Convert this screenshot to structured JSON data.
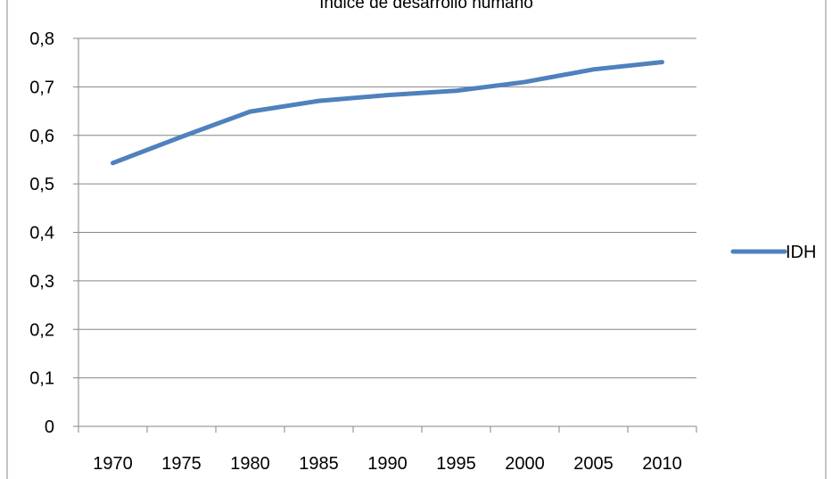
{
  "chart_data": {
    "type": "line",
    "title": "Índice de desarrollo humano",
    "xlabel": "",
    "ylabel": "",
    "categories": [
      "1970",
      "1975",
      "1980",
      "1985",
      "1990",
      "1995",
      "2000",
      "2005",
      "2010"
    ],
    "series": [
      {
        "name": "IDH",
        "color": "#4f81bd",
        "values": [
          0.543,
          0.597,
          0.649,
          0.671,
          0.683,
          0.692,
          0.71,
          0.736,
          0.751
        ]
      }
    ],
    "y_ticks": [
      "0",
      "0,1",
      "0,2",
      "0,3",
      "0,4",
      "0,5",
      "0,6",
      "0,7",
      "0,8"
    ],
    "ylim": [
      0,
      0.8
    ],
    "grid": true,
    "legend_position": "right"
  }
}
